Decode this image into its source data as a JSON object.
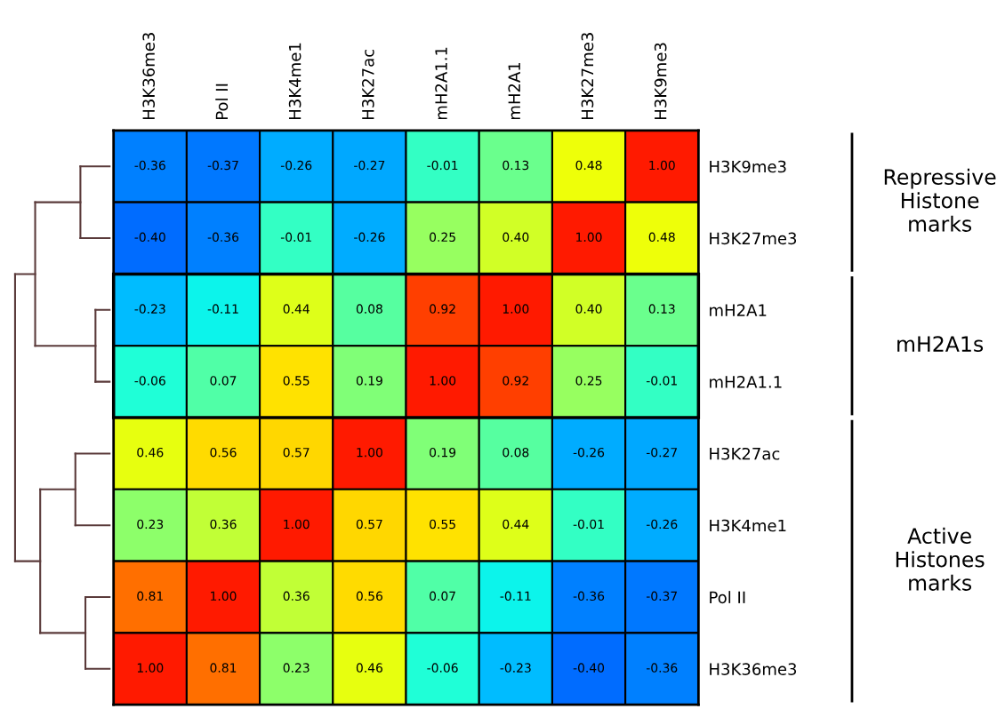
{
  "chart_data": {
    "type": "heatmap",
    "categories": [
      "H3K36me3",
      "Pol II",
      "H3K4me1",
      "H3K27ac",
      "mH2A1.1",
      "mH2A1",
      "H3K27me3",
      "H3K9me3"
    ],
    "y_categories": [
      "H3K9me3",
      "H3K27me3",
      "mH2A1",
      "mH2A1.1",
      "H3K27ac",
      "H3K4me1",
      "Pol II",
      "H3K36me3"
    ],
    "cells": [
      [
        -0.36,
        -0.37,
        -0.26,
        -0.27,
        -0.01,
        0.13,
        0.48,
        1.0
      ],
      [
        -0.4,
        -0.36,
        -0.01,
        -0.26,
        0.25,
        0.4,
        1.0,
        0.48
      ],
      [
        -0.23,
        -0.11,
        0.44,
        0.08,
        0.92,
        1.0,
        0.4,
        0.13
      ],
      [
        -0.06,
        0.07,
        0.55,
        0.19,
        1.0,
        0.92,
        0.25,
        -0.01
      ],
      [
        0.46,
        0.56,
        0.57,
        1.0,
        0.19,
        0.08,
        -0.26,
        -0.27
      ],
      [
        0.23,
        0.36,
        1.0,
        0.57,
        0.55,
        0.44,
        -0.01,
        -0.26
      ],
      [
        0.81,
        1.0,
        0.36,
        0.56,
        0.07,
        -0.11,
        -0.36,
        -0.37
      ],
      [
        1.0,
        0.81,
        0.23,
        0.46,
        -0.06,
        -0.23,
        -0.4,
        -0.36
      ]
    ],
    "cell_labels": [
      [
        "-0.36",
        "-0.37",
        "-0.26",
        "-0.27",
        "-0.01",
        "0.13",
        "0.48",
        "1.00"
      ],
      [
        "-0.40",
        "-0.36",
        "-0.01",
        "-0.26",
        "0.25",
        "0.40",
        "1.00",
        "0.48"
      ],
      [
        "-0.23",
        "-0.11",
        "0.44",
        "0.08",
        "0.92",
        "1.00",
        "0.40",
        "0.13"
      ],
      [
        "-0.06",
        "0.07",
        "0.55",
        "0.19",
        "1.00",
        "0.92",
        "0.25",
        "-0.01"
      ],
      [
        "0.46",
        "0.56",
        "0.57",
        "1.00",
        "0.19",
        "0.08",
        "-0.26",
        "-0.27"
      ],
      [
        "0.23",
        "0.36",
        "1.00",
        "0.57",
        "0.55",
        "0.44",
        "-0.01",
        "-0.26"
      ],
      [
        "0.81",
        "1.00",
        "0.36",
        "0.56",
        "0.07",
        "-0.11",
        "-0.36",
        "-0.37"
      ],
      [
        "1.00",
        "0.81",
        "0.23",
        "0.46",
        "-0.06",
        "-0.23",
        "-0.40",
        "-0.36"
      ]
    ],
    "annotations": [
      "Repressive\nHistone\nmarks",
      "mH2A1s",
      "Active\nHistones\nmarks"
    ]
  }
}
